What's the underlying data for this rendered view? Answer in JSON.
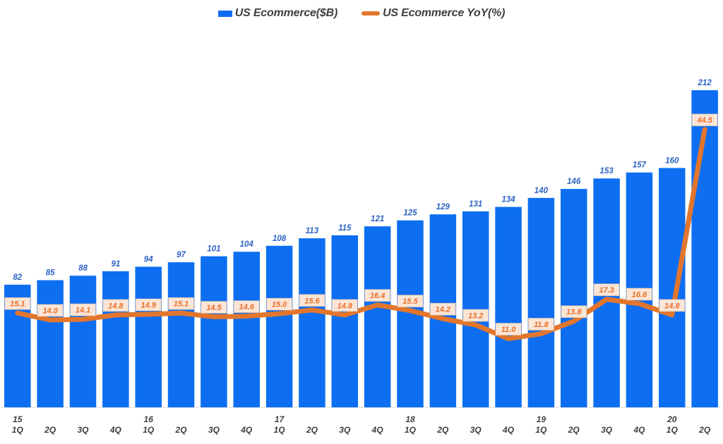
{
  "legend": {
    "bar_label": "US Ecommerce($B)",
    "line_label": "US Ecommerce YoY(%)"
  },
  "colors": {
    "bar": "#0d6ef2",
    "bar_label_text": "#2d63c4",
    "line": "#e2762d",
    "yoy_label_text": "#e8702a",
    "yoy_label_bg": "#fbe5d6",
    "yoy_label_border": "#edb98c",
    "axis_text": "#3f3f3f",
    "axis_line": "#d9d9d9",
    "background": "#ffffff"
  },
  "chart_data": {
    "type": "bar",
    "subtype": "combo-bar-line",
    "title": "",
    "xlabel": "",
    "ylabel": "",
    "grid": false,
    "legend_position": "top",
    "bar_axis_range": [
      0,
      212
    ],
    "line_axis_range": [
      0,
      50
    ],
    "categories": [
      {
        "year": "15",
        "quarter": "1Q"
      },
      {
        "year": "",
        "quarter": "2Q"
      },
      {
        "year": "",
        "quarter": "3Q"
      },
      {
        "year": "",
        "quarter": "4Q"
      },
      {
        "year": "16",
        "quarter": "1Q"
      },
      {
        "year": "",
        "quarter": "2Q"
      },
      {
        "year": "",
        "quarter": "3Q"
      },
      {
        "year": "",
        "quarter": "4Q"
      },
      {
        "year": "17",
        "quarter": "1Q"
      },
      {
        "year": "",
        "quarter": "2Q"
      },
      {
        "year": "",
        "quarter": "3Q"
      },
      {
        "year": "",
        "quarter": "4Q"
      },
      {
        "year": "18",
        "quarter": "1Q"
      },
      {
        "year": "",
        "quarter": "2Q"
      },
      {
        "year": "",
        "quarter": "3Q"
      },
      {
        "year": "",
        "quarter": "4Q"
      },
      {
        "year": "19",
        "quarter": "1Q"
      },
      {
        "year": "",
        "quarter": "2Q"
      },
      {
        "year": "",
        "quarter": "3Q"
      },
      {
        "year": "",
        "quarter": "4Q"
      },
      {
        "year": "20",
        "quarter": "1Q"
      },
      {
        "year": "",
        "quarter": "2Q"
      }
    ],
    "series": [
      {
        "name": "US Ecommerce($B)",
        "type": "bar",
        "values": [
          82,
          85,
          88,
          91,
          94,
          97,
          101,
          104,
          108,
          113,
          115,
          121,
          125,
          129,
          131,
          134,
          140,
          146,
          153,
          157,
          160,
          212
        ]
      },
      {
        "name": "US Ecommerce YoY(%)",
        "type": "line",
        "values": [
          15.1,
          14.0,
          14.1,
          14.8,
          14.9,
          15.1,
          14.5,
          14.6,
          15.0,
          15.6,
          14.8,
          16.4,
          15.5,
          14.2,
          13.2,
          11.0,
          11.8,
          13.8,
          17.3,
          16.6,
          14.8,
          44.5
        ]
      }
    ]
  }
}
